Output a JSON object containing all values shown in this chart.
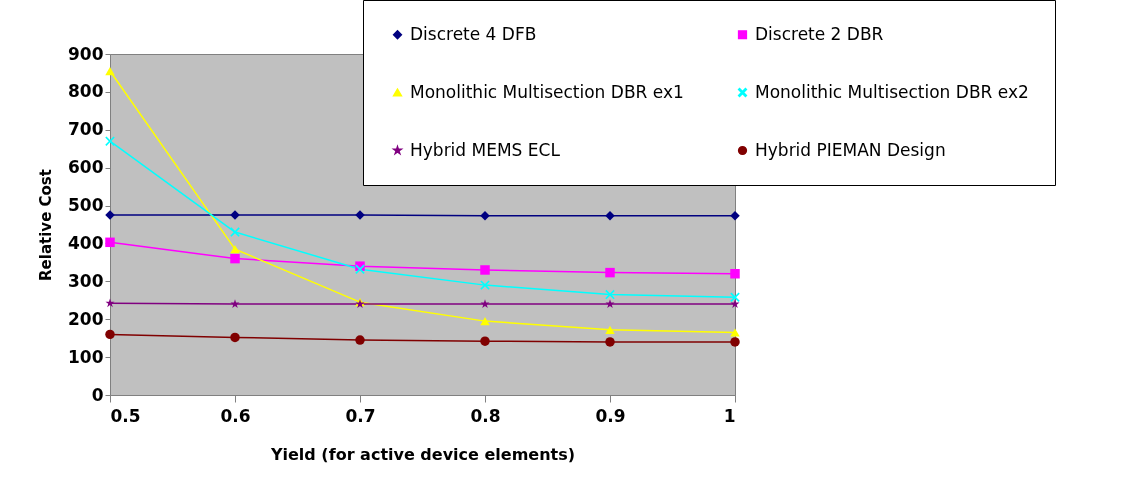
{
  "chart_data": {
    "type": "line",
    "xlabel": "Yield  (for active device elements)",
    "ylabel": "Relative Cost",
    "x": [
      0.5,
      0.6,
      0.7,
      0.8,
      0.9,
      1
    ],
    "xlim": [
      0.5,
      1
    ],
    "xticks": [
      0.5,
      0.6,
      0.7,
      0.8,
      0.9,
      1
    ],
    "ylim": [
      0,
      900
    ],
    "yticks": [
      0,
      100,
      200,
      300,
      400,
      500,
      600,
      700,
      800,
      900
    ],
    "grid": false,
    "legend": "top right",
    "series": [
      {
        "name": "Discrete 4 DFB",
        "color": "#000080",
        "marker": "diamond",
        "values": [
          475,
          475,
          475,
          473,
          473,
          473
        ]
      },
      {
        "name": "Discrete 2 DBR",
        "color": "#ff00ff",
        "marker": "square",
        "values": [
          403,
          360,
          340,
          330,
          323,
          320
        ]
      },
      {
        "name": "Monolithic Multisection DBR ex1",
        "color": "#ffff00",
        "marker": "triangle",
        "values": [
          855,
          385,
          245,
          195,
          172,
          165
        ]
      },
      {
        "name": "Monolithic Multisection DBR ex2",
        "color": "#00ffff",
        "marker": "cross",
        "values": [
          670,
          430,
          332,
          290,
          265,
          258
        ]
      },
      {
        "name": "Hybrid MEMS ECL",
        "color": "#800080",
        "marker": "star",
        "values": [
          242,
          240,
          240,
          240,
          240,
          240
        ]
      },
      {
        "name": "Hybrid PIEMAN Design",
        "color": "#800000",
        "marker": "circle",
        "values": [
          160,
          152,
          145,
          142,
          140,
          140
        ]
      }
    ]
  }
}
